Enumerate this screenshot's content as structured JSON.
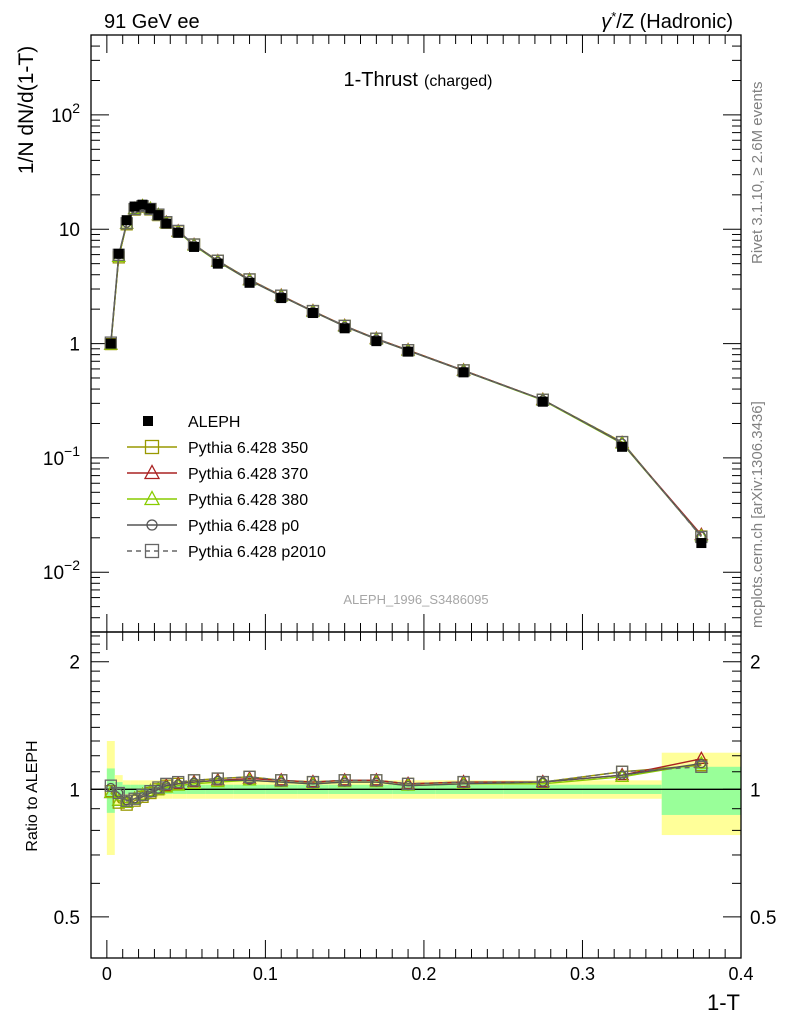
{
  "header": {
    "left_label": "91 GeV ee",
    "right_label_gamma": "γ",
    "right_label_star": "*",
    "right_label_rest": "/Z (Hadronic)"
  },
  "side_labels": {
    "rivet": "Rivet 3.1.10, ≥ 2.6M events",
    "mcplots": "mcplots.cern.ch [arXiv:1306.3436]"
  },
  "chart_data": {
    "type": "line",
    "title": "1-Thrust",
    "title_suffix": "(charged)",
    "watermark": "ALEPH_1996_S3486095",
    "xlabel": "1-T",
    "ylabel": "1/N dN/d(1-T)",
    "ratio_ylabel": "Ratio to ALEPH",
    "xlim": [
      -0.01,
      0.4
    ],
    "ylim": [
      0.003,
      500
    ],
    "yscale": "log",
    "ratio_ylim": [
      0.4,
      2.35
    ],
    "ratio_yscale": "log",
    "x_ticks": [
      "0",
      "0.1",
      "0.2",
      "0.3",
      "0.4"
    ],
    "y_ticks": [
      {
        "mant": "10",
        "exp": "2"
      },
      {
        "mant": "10",
        "exp": ""
      },
      {
        "mant": "1",
        "exp": ""
      },
      {
        "mant": "10",
        "exp": "−1"
      },
      {
        "mant": "10",
        "exp": "−2"
      }
    ],
    "ratio_ticks": [
      "2",
      "1",
      "0.5"
    ],
    "legend_position": "middle-left",
    "x": [
      0.0025,
      0.0075,
      0.0125,
      0.0175,
      0.0225,
      0.0275,
      0.0325,
      0.0375,
      0.045,
      0.055,
      0.07,
      0.09,
      0.11,
      0.13,
      0.15,
      0.17,
      0.19,
      0.225,
      0.275,
      0.325,
      0.375
    ],
    "data": {
      "name": "ALEPH",
      "values": [
        1.0,
        6.1,
        12.0,
        15.8,
        16.4,
        15.2,
        13.3,
        11.2,
        9.3,
        7.0,
        5.0,
        3.4,
        2.5,
        1.85,
        1.36,
        1.05,
        0.85,
        0.56,
        0.31,
        0.125,
        0.018
      ],
      "band_inner": [
        0.12,
        0.04,
        0.025,
        0.025,
        0.025,
        0.025,
        0.025,
        0.025,
        0.025,
        0.025,
        0.025,
        0.025,
        0.025,
        0.025,
        0.025,
        0.025,
        0.025,
        0.025,
        0.025,
        0.025,
        0.13
      ],
      "band_outer": [
        0.3,
        0.08,
        0.05,
        0.05,
        0.05,
        0.05,
        0.05,
        0.05,
        0.05,
        0.05,
        0.05,
        0.05,
        0.05,
        0.05,
        0.05,
        0.05,
        0.05,
        0.05,
        0.05,
        0.05,
        0.22
      ]
    },
    "series": [
      {
        "name": "Pythia 6.428 350",
        "color": "#999900",
        "marker": "square-open",
        "dash": false,
        "ratio": [
          0.99,
          0.93,
          0.92,
          0.94,
          0.96,
          0.98,
          1.0,
          1.02,
          1.03,
          1.05,
          1.06,
          1.07,
          1.05,
          1.04,
          1.05,
          1.05,
          1.03,
          1.04,
          1.04,
          1.1,
          1.14
        ]
      },
      {
        "name": "Pythia 6.428 370",
        "color": "#aa2222",
        "marker": "triangle-open",
        "dash": false,
        "ratio": [
          0.98,
          0.94,
          0.93,
          0.95,
          0.97,
          0.99,
          1.0,
          1.02,
          1.03,
          1.04,
          1.05,
          1.06,
          1.05,
          1.04,
          1.05,
          1.05,
          1.03,
          1.04,
          1.04,
          1.08,
          1.18
        ]
      },
      {
        "name": "Pythia 6.428 380",
        "color": "#88cc00",
        "marker": "triangle-open",
        "dash": false,
        "ratio": [
          0.98,
          0.94,
          0.93,
          0.95,
          0.97,
          0.99,
          1.0,
          1.01,
          1.02,
          1.03,
          1.04,
          1.05,
          1.04,
          1.03,
          1.04,
          1.04,
          1.02,
          1.03,
          1.03,
          1.07,
          1.15
        ]
      },
      {
        "name": "Pythia 6.428 p0",
        "color": "#555555",
        "marker": "circle-open",
        "dash": false,
        "ratio": [
          1.01,
          0.98,
          0.94,
          0.95,
          0.96,
          0.98,
          1.0,
          1.02,
          1.03,
          1.04,
          1.05,
          1.05,
          1.04,
          1.03,
          1.04,
          1.04,
          1.02,
          1.03,
          1.04,
          1.08,
          1.15
        ]
      },
      {
        "name": "Pythia 6.428 p2010",
        "color": "#666666",
        "marker": "square-open",
        "dash": true,
        "ratio": [
          1.02,
          0.98,
          0.94,
          0.95,
          0.97,
          0.99,
          1.01,
          1.03,
          1.04,
          1.05,
          1.06,
          1.07,
          1.05,
          1.04,
          1.05,
          1.05,
          1.03,
          1.04,
          1.04,
          1.1,
          1.13
        ]
      }
    ]
  }
}
